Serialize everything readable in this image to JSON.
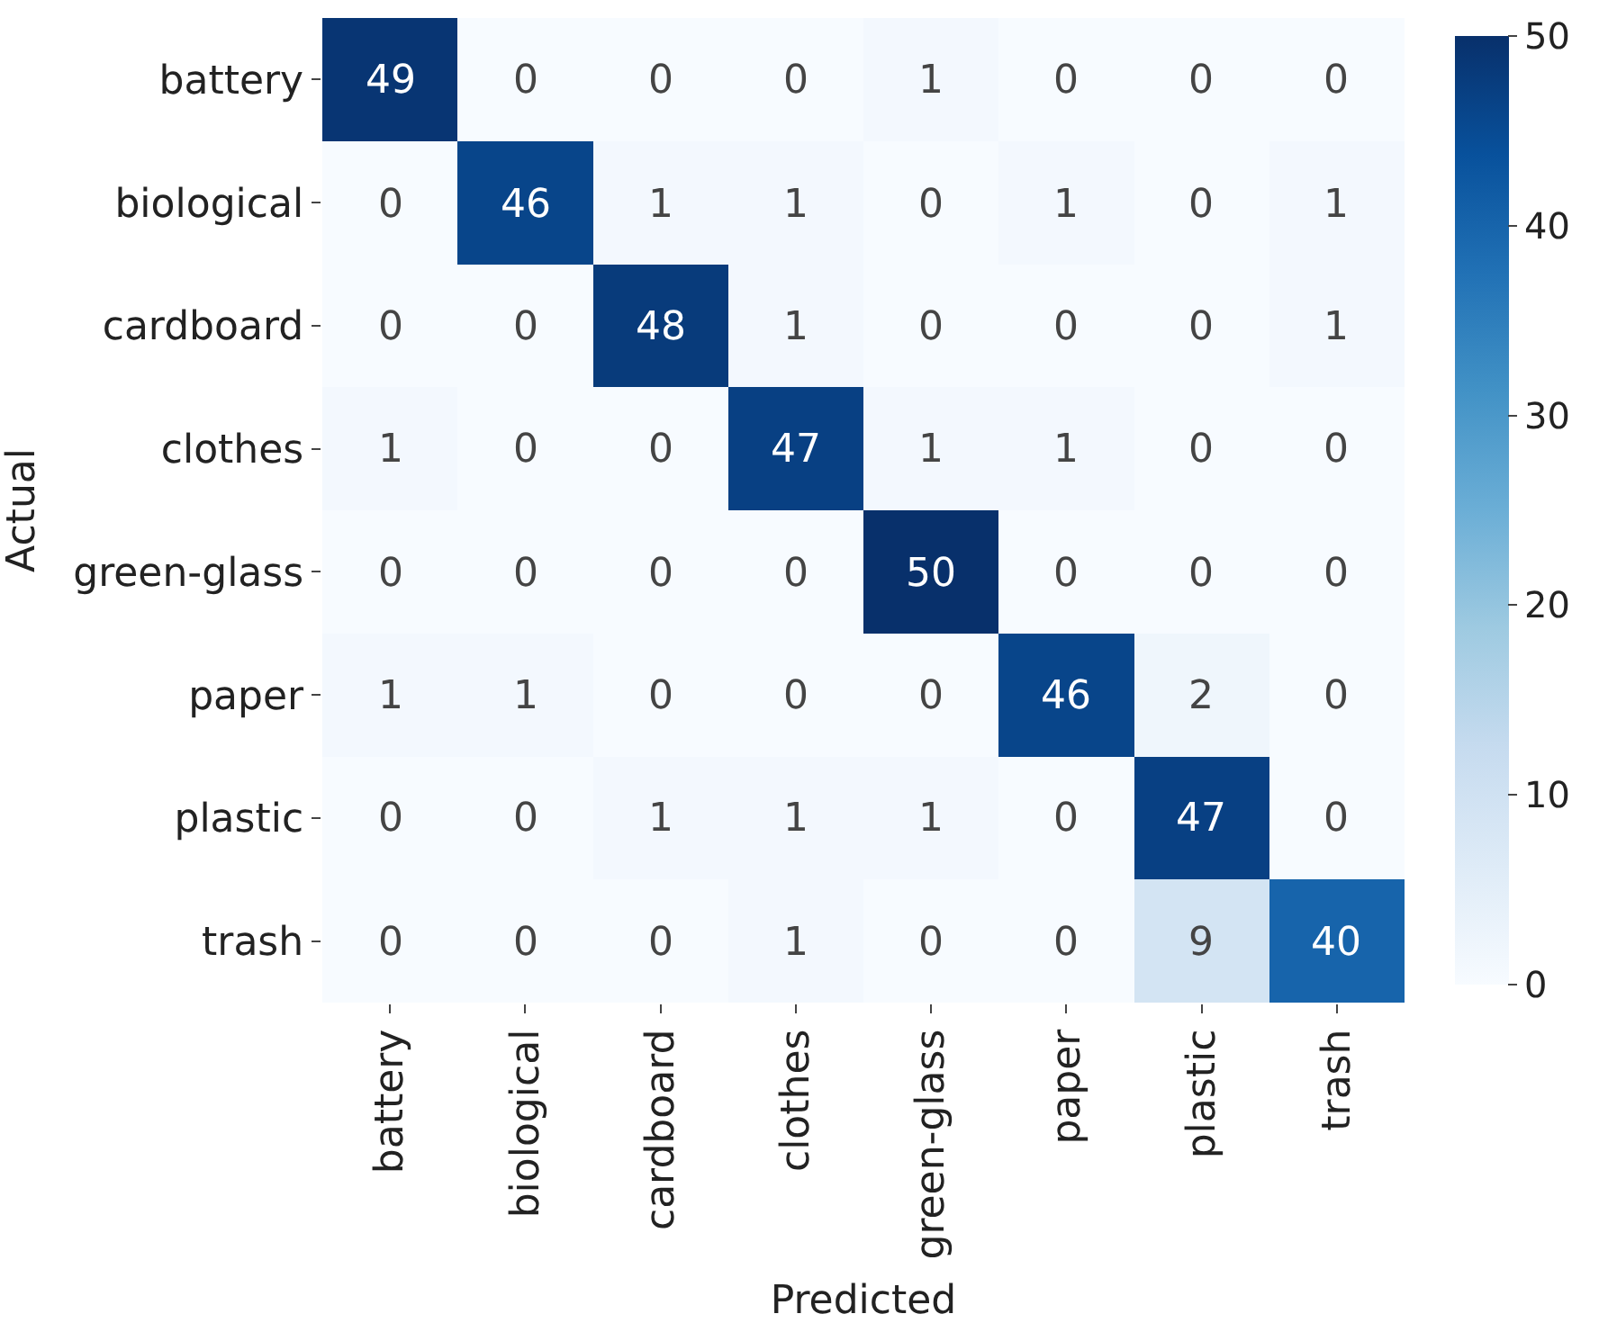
{
  "chart_data": {
    "type": "heatmap",
    "xlabel": "Predicted",
    "ylabel": "Actual",
    "categories": [
      "battery",
      "biological",
      "cardboard",
      "clothes",
      "green-glass",
      "paper",
      "plastic",
      "trash"
    ],
    "y_categories": [
      "battery",
      "biological",
      "cardboard",
      "clothes",
      "green-glass",
      "paper",
      "plastic",
      "trash"
    ],
    "cells": [
      [
        49,
        0,
        0,
        0,
        1,
        0,
        0,
        0
      ],
      [
        0,
        46,
        1,
        1,
        0,
        1,
        0,
        1
      ],
      [
        0,
        0,
        48,
        1,
        0,
        0,
        0,
        1
      ],
      [
        1,
        0,
        0,
        47,
        1,
        1,
        0,
        0
      ],
      [
        0,
        0,
        0,
        0,
        50,
        0,
        0,
        0
      ],
      [
        1,
        1,
        0,
        0,
        0,
        46,
        2,
        0
      ],
      [
        0,
        0,
        1,
        1,
        1,
        0,
        47,
        0
      ],
      [
        0,
        0,
        0,
        1,
        0,
        0,
        9,
        40
      ]
    ],
    "clim": [
      0,
      50
    ],
    "cticks": [
      0,
      10,
      20,
      30,
      40,
      50
    ],
    "data_labels": true
  }
}
